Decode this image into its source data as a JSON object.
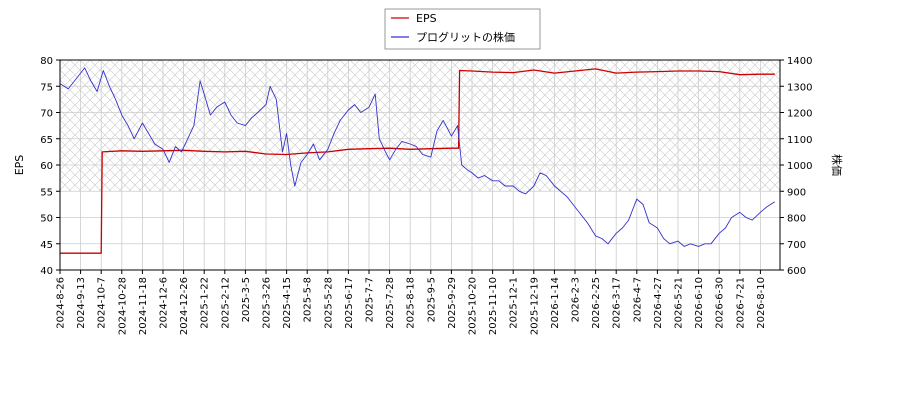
{
  "chart_data": {
    "type": "line",
    "title": "",
    "legend": {
      "placement": "top-center",
      "entries": [
        {
          "name": "EPS",
          "color": "#cc0000"
        },
        {
          "name": "プログリットの株価",
          "color": "#3333cc"
        }
      ]
    },
    "x_axis": {
      "tick_labels": [
        "2024-8-26",
        "2024-9-13",
        "2024-10-7",
        "2024-10-28",
        "2024-11-18",
        "2024-12-6",
        "2024-12-26",
        "2025-1-22",
        "2025-2-12",
        "2025-3-5",
        "2025-3-26",
        "2025-4-15",
        "2025-5-8",
        "2025-5-28",
        "2025-6-17",
        "2025-7-7",
        "2025-7-28",
        "2025-8-18",
        "2025-9-5",
        "2025-9-29",
        "2025-10-20",
        "2025-11-10",
        "2025-12-1",
        "2025-12-19",
        "2026-1-14",
        "2026-2-3",
        "2026-2-25",
        "2026-3-17",
        "2026-4-7",
        "2026-4-27",
        "2026-5-21",
        "2026-6-10",
        "2026-6-30",
        "2026-7-21",
        "2026-8-10"
      ]
    },
    "y_left": {
      "label": "EPS",
      "range": [
        40,
        80
      ],
      "ticks": [
        40,
        45,
        50,
        55,
        60,
        65,
        70,
        75,
        80
      ]
    },
    "y_right": {
      "label": "株価",
      "range": [
        600,
        1400
      ],
      "ticks": [
        600,
        700,
        800,
        900,
        1000,
        1100,
        1200,
        1300,
        1400
      ]
    },
    "grid": true,
    "hatched_band": {
      "axis": "right",
      "from": 900,
      "to": 1400
    },
    "series": [
      {
        "name": "EPS",
        "axis": "left",
        "color": "#cc0000",
        "points": [
          [
            0,
            43.2
          ],
          [
            2,
            43.2
          ],
          [
            2.05,
            62.5
          ],
          [
            3,
            62.7
          ],
          [
            4,
            62.6
          ],
          [
            5,
            62.7
          ],
          [
            6,
            62.8
          ],
          [
            7,
            62.6
          ],
          [
            8,
            62.5
          ],
          [
            9,
            62.6
          ],
          [
            10,
            62.1
          ],
          [
            11,
            62.0
          ],
          [
            12,
            62.3
          ],
          [
            13,
            62.5
          ],
          [
            14,
            63.0
          ],
          [
            15,
            63.1
          ],
          [
            16,
            63.2
          ],
          [
            17,
            63.0
          ],
          [
            18,
            63.1
          ],
          [
            19,
            63.2
          ],
          [
            19.35,
            63.2
          ],
          [
            19.4,
            78.0
          ],
          [
            20,
            77.9
          ],
          [
            21,
            77.7
          ],
          [
            22,
            77.6
          ],
          [
            23,
            78.1
          ],
          [
            24,
            77.5
          ],
          [
            25,
            77.9
          ],
          [
            26,
            78.3
          ],
          [
            27,
            77.5
          ],
          [
            28,
            77.7
          ],
          [
            29,
            77.8
          ],
          [
            30,
            77.9
          ],
          [
            31,
            77.9
          ],
          [
            32,
            77.8
          ],
          [
            33,
            77.2
          ],
          [
            34,
            77.3
          ],
          [
            34.7,
            77.3
          ]
        ]
      },
      {
        "name": "プログリットの株価",
        "axis": "right",
        "color": "#3333cc",
        "points": [
          [
            0,
            1310
          ],
          [
            0.4,
            1290
          ],
          [
            0.8,
            1330
          ],
          [
            1.2,
            1370
          ],
          [
            1.5,
            1320
          ],
          [
            1.8,
            1280
          ],
          [
            2.1,
            1360
          ],
          [
            2.4,
            1300
          ],
          [
            2.7,
            1250
          ],
          [
            3,
            1190
          ],
          [
            3.3,
            1150
          ],
          [
            3.6,
            1100
          ],
          [
            4,
            1160
          ],
          [
            4.3,
            1120
          ],
          [
            4.6,
            1080
          ],
          [
            5,
            1060
          ],
          [
            5.3,
            1010
          ],
          [
            5.6,
            1070
          ],
          [
            5.9,
            1050
          ],
          [
            6.2,
            1100
          ],
          [
            6.5,
            1150
          ],
          [
            6.8,
            1320
          ],
          [
            7,
            1270
          ],
          [
            7.3,
            1190
          ],
          [
            7.6,
            1220
          ],
          [
            8,
            1240
          ],
          [
            8.3,
            1190
          ],
          [
            8.6,
            1160
          ],
          [
            9,
            1150
          ],
          [
            9.3,
            1180
          ],
          [
            9.6,
            1200
          ],
          [
            10,
            1230
          ],
          [
            10.2,
            1300
          ],
          [
            10.5,
            1250
          ],
          [
            10.8,
            1050
          ],
          [
            11,
            1120
          ],
          [
            11.2,
            1000
          ],
          [
            11.4,
            920
          ],
          [
            11.7,
            1010
          ],
          [
            12,
            1040
          ],
          [
            12.3,
            1080
          ],
          [
            12.6,
            1020
          ],
          [
            13,
            1060
          ],
          [
            13.3,
            1120
          ],
          [
            13.6,
            1170
          ],
          [
            14,
            1210
          ],
          [
            14.3,
            1230
          ],
          [
            14.6,
            1200
          ],
          [
            15,
            1220
          ],
          [
            15.3,
            1270
          ],
          [
            15.5,
            1100
          ],
          [
            15.8,
            1050
          ],
          [
            16,
            1020
          ],
          [
            16.3,
            1060
          ],
          [
            16.6,
            1090
          ],
          [
            17,
            1080
          ],
          [
            17.3,
            1070
          ],
          [
            17.6,
            1040
          ],
          [
            18,
            1030
          ],
          [
            18.3,
            1130
          ],
          [
            18.6,
            1170
          ],
          [
            19,
            1110
          ],
          [
            19.3,
            1150
          ],
          [
            19.5,
            1000
          ],
          [
            19.8,
            980
          ],
          [
            20,
            970
          ],
          [
            20.3,
            950
          ],
          [
            20.6,
            960
          ],
          [
            21,
            940
          ],
          [
            21.3,
            940
          ],
          [
            21.6,
            920
          ],
          [
            22,
            920
          ],
          [
            22.3,
            900
          ],
          [
            22.6,
            890
          ],
          [
            23,
            920
          ],
          [
            23.3,
            970
          ],
          [
            23.6,
            960
          ],
          [
            24,
            920
          ],
          [
            24.3,
            900
          ],
          [
            24.6,
            880
          ],
          [
            25,
            840
          ],
          [
            25.3,
            810
          ],
          [
            25.6,
            780
          ],
          [
            26,
            730
          ],
          [
            26.3,
            720
          ],
          [
            26.6,
            700
          ],
          [
            27,
            740
          ],
          [
            27.3,
            760
          ],
          [
            27.6,
            790
          ],
          [
            28,
            870
          ],
          [
            28.3,
            850
          ],
          [
            28.6,
            780
          ],
          [
            29,
            760
          ],
          [
            29.3,
            720
          ],
          [
            29.6,
            700
          ],
          [
            30,
            710
          ],
          [
            30.3,
            690
          ],
          [
            30.6,
            700
          ],
          [
            31,
            690
          ],
          [
            31.3,
            700
          ],
          [
            31.6,
            700
          ],
          [
            32,
            740
          ],
          [
            32.3,
            760
          ],
          [
            32.6,
            800
          ],
          [
            33,
            820
          ],
          [
            33.3,
            800
          ],
          [
            33.6,
            790
          ],
          [
            34,
            820
          ],
          [
            34.3,
            840
          ],
          [
            34.7,
            860
          ]
        ]
      }
    ]
  }
}
